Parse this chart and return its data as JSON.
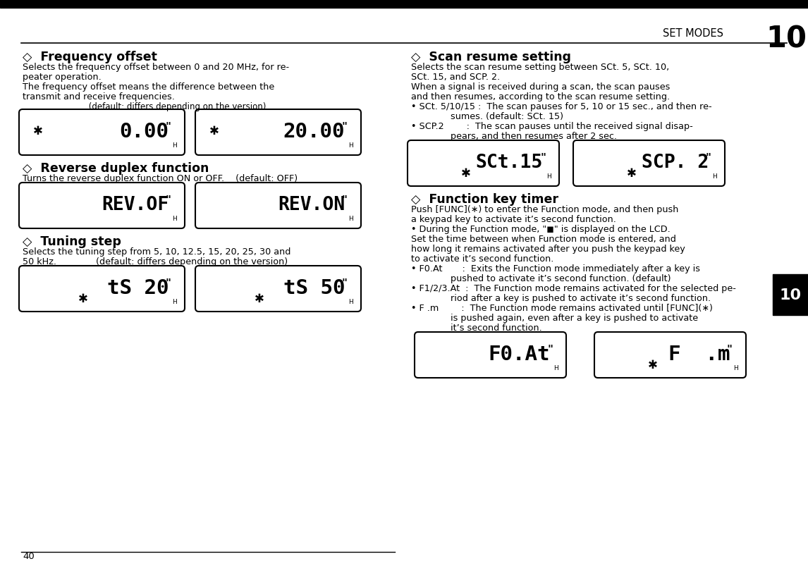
{
  "bg": "#ffffff",
  "title_small": "SET MODES",
  "title_big": "10",
  "page_num": "40",
  "left": [
    {
      "head": "◇  Frequency offset",
      "lines": [
        "Selects the frequency offset between 0 and 20 MHz, for re-",
        "peater operation.",
        "The frequency offset means the difference between the",
        "transmit and receive frequencies.",
        "                         (default: differs depending on the version)"
      ],
      "disps": [
        "0.00",
        "20.00"
      ],
      "disp_sun": [
        true,
        true
      ],
      "disp_sun_pos": [
        "left",
        "left"
      ]
    },
    {
      "head": "◇  Reverse duplex function",
      "lines": [
        "Turns the reverse duplex function ON or OFF.    (default: OFF)"
      ],
      "disps": [
        "REV.OF",
        "REV.ON"
      ],
      "disp_sun": [
        false,
        false
      ],
      "disp_sun_pos": [
        "none",
        "none"
      ]
    },
    {
      "head": "◇  Tuning step",
      "lines": [
        "Selects the tuning step from 5, 10, 12.5, 15, 20, 25, 30 and",
        "50 kHz.              (default: differs depending on the version)"
      ],
      "disps": [
        "tS 20",
        "tS 50"
      ],
      "disp_sun": [
        true,
        true
      ],
      "disp_sun_pos": [
        "bottom",
        "bottom"
      ]
    }
  ],
  "right": [
    {
      "head": "◇  Scan resume setting",
      "lines": [
        "Selects the scan resume setting between SCt. 5, SCt. 10,",
        "SCt. 15, and SCP. 2.",
        "When a signal is received during a scan, the scan pauses",
        "and then resumes, according to the scan resume setting.",
        "• SCt. 5/10/15 :  The scan pauses for 5, 10 or 15 sec., and then re-",
        "              sumes. (default: SCt. 15)",
        "• SCP.2        :  The scan pauses until the received signal disap-",
        "              pears, and then resumes after 2 sec."
      ],
      "disps": [
        "SCt.15",
        "SCP. 2"
      ],
      "disp_sun": [
        true,
        true
      ],
      "disp_sun_pos": [
        "bottom",
        "bottom"
      ]
    },
    {
      "head": "◇  Function key timer",
      "lines": [
        "Push [FUNC](∗) to enter the Function mode, and then push",
        "a keypad key to activate it’s second function.",
        "• During the Function mode, \"◼\" is displayed on the LCD.",
        "Set the time between when Function mode is entered, and",
        "how long it remains activated after you push the keypad key",
        "to activate it’s second function.",
        "• F0.At       :  Exits the Function mode immediately after a key is",
        "              pushed to activate it’s second function. (default)",
        "• F1/2/3.At  :  The Function mode remains activated for the selected pe-",
        "              riod after a key is pushed to activate it’s second function.",
        "• F .m        :  The Function mode remains activated until [FUNC](∗)",
        "              is pushed again, even after a key is pushed to activate",
        "              it’s second function."
      ],
      "disps": [
        "F0.At",
        "F  .m"
      ],
      "disp_sun": [
        false,
        true
      ],
      "disp_sun_pos": [
        "none",
        "bottom"
      ]
    }
  ]
}
